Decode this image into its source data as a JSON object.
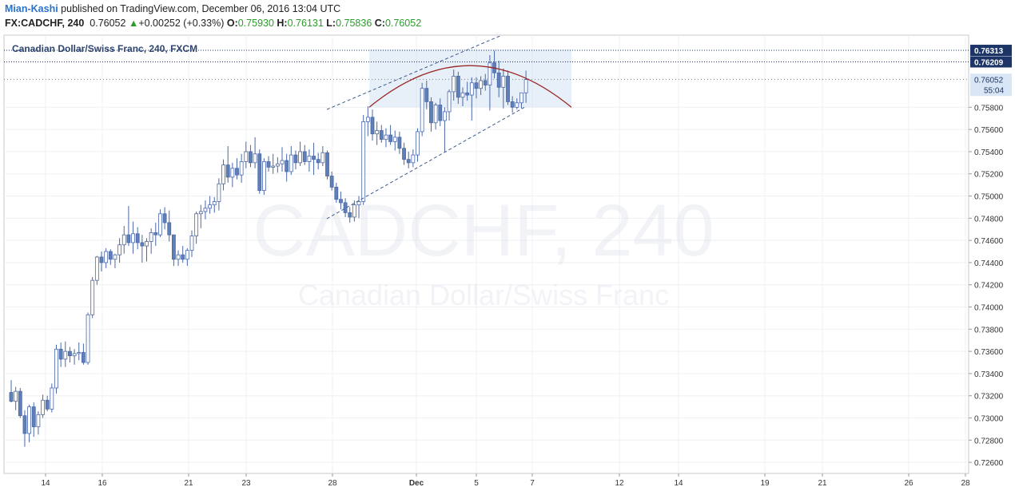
{
  "header": {
    "author": "Mian-Kashi",
    "published_text": "published on TradingView.com, December 06, 2016 13:04 UTC",
    "symbol": "FX:CADCHF, 240",
    "last": "0.76052",
    "change_arrow": "▲",
    "change": "+0.00252 (+0.33%)",
    "open_label": "O:",
    "open": "0.75930",
    "high_label": "H:",
    "high": "0.76131",
    "low_label": "L:",
    "low": "0.75836",
    "close_label": "C:",
    "close": "0.76052"
  },
  "chart_data": {
    "type": "candlestick",
    "title": "Canadian Dollar/Swiss Franc, 240, FXCM",
    "watermark_symbol": "CADCHF, 240",
    "watermark_name": "Canadian Dollar/Swiss Franc",
    "ylim": [
      0.725,
      0.7645
    ],
    "y_ticks": [
      "0.72600",
      "0.72800",
      "0.73000",
      "0.73200",
      "0.73400",
      "0.73600",
      "0.73800",
      "0.74000",
      "0.74200",
      "0.74400",
      "0.74600",
      "0.74800",
      "0.75000",
      "0.75200",
      "0.75400",
      "0.75600",
      "0.75800"
    ],
    "x_ticks": [
      "14",
      "16",
      "21",
      "23",
      "28",
      "Dec",
      "5",
      "7",
      "12",
      "14",
      "19",
      "21",
      "26",
      "28"
    ],
    "price_labels": {
      "upper_level": "0.76313",
      "lower_level": "0.76209",
      "last_price": "0.76052",
      "countdown": "55:04"
    },
    "grid": true,
    "colors": {
      "up_body": "#ffffff",
      "down_body": "#5f7fb8",
      "outline": "#4a68a8",
      "channel": "#3d5a8f",
      "arc": "#9b2a2a",
      "shade": "#d4e4f2",
      "last_price": "#5b86c2"
    },
    "candles": [
      {
        "o": 0.7323,
        "h": 0.7334,
        "l": 0.7314,
        "c": 0.7315
      },
      {
        "o": 0.7315,
        "h": 0.7328,
        "l": 0.7307,
        "c": 0.7324
      },
      {
        "o": 0.7324,
        "h": 0.7327,
        "l": 0.73,
        "c": 0.7302
      },
      {
        "o": 0.7302,
        "h": 0.7307,
        "l": 0.7274,
        "c": 0.7286
      },
      {
        "o": 0.7286,
        "h": 0.7312,
        "l": 0.7278,
        "c": 0.731
      },
      {
        "o": 0.731,
        "h": 0.7314,
        "l": 0.7283,
        "c": 0.7292
      },
      {
        "o": 0.7292,
        "h": 0.7306,
        "l": 0.7285,
        "c": 0.7303
      },
      {
        "o": 0.7303,
        "h": 0.7321,
        "l": 0.73,
        "c": 0.7316
      },
      {
        "o": 0.7316,
        "h": 0.732,
        "l": 0.7306,
        "c": 0.7308
      },
      {
        "o": 0.7308,
        "h": 0.7331,
        "l": 0.7305,
        "c": 0.7327
      },
      {
        "o": 0.7327,
        "h": 0.7366,
        "l": 0.7322,
        "c": 0.7362
      },
      {
        "o": 0.7362,
        "h": 0.7368,
        "l": 0.7346,
        "c": 0.7353
      },
      {
        "o": 0.7353,
        "h": 0.7369,
        "l": 0.7346,
        "c": 0.736
      },
      {
        "o": 0.736,
        "h": 0.7364,
        "l": 0.735,
        "c": 0.7356
      },
      {
        "o": 0.7356,
        "h": 0.7362,
        "l": 0.7348,
        "c": 0.7358
      },
      {
        "o": 0.7358,
        "h": 0.7368,
        "l": 0.7352,
        "c": 0.7359
      },
      {
        "o": 0.7359,
        "h": 0.7367,
        "l": 0.7348,
        "c": 0.735
      },
      {
        "o": 0.735,
        "h": 0.7395,
        "l": 0.7348,
        "c": 0.7393
      },
      {
        "o": 0.7393,
        "h": 0.7427,
        "l": 0.739,
        "c": 0.7424
      },
      {
        "o": 0.7424,
        "h": 0.7446,
        "l": 0.742,
        "c": 0.7445
      },
      {
        "o": 0.7445,
        "h": 0.745,
        "l": 0.7432,
        "c": 0.744
      },
      {
        "o": 0.744,
        "h": 0.7453,
        "l": 0.7435,
        "c": 0.745
      },
      {
        "o": 0.745,
        "h": 0.7452,
        "l": 0.7438,
        "c": 0.7443
      },
      {
        "o": 0.7443,
        "h": 0.7448,
        "l": 0.7435,
        "c": 0.7447
      },
      {
        "o": 0.7447,
        "h": 0.7462,
        "l": 0.744,
        "c": 0.7456
      },
      {
        "o": 0.7456,
        "h": 0.7473,
        "l": 0.7448,
        "c": 0.7465
      },
      {
        "o": 0.7465,
        "h": 0.7491,
        "l": 0.7455,
        "c": 0.7458
      },
      {
        "o": 0.7458,
        "h": 0.7477,
        "l": 0.7448,
        "c": 0.7466
      },
      {
        "o": 0.7466,
        "h": 0.7472,
        "l": 0.7452,
        "c": 0.7458
      },
      {
        "o": 0.7458,
        "h": 0.7465,
        "l": 0.744,
        "c": 0.7455
      },
      {
        "o": 0.7455,
        "h": 0.7462,
        "l": 0.7441,
        "c": 0.7459
      },
      {
        "o": 0.7459,
        "h": 0.7471,
        "l": 0.7448,
        "c": 0.7467
      },
      {
        "o": 0.7467,
        "h": 0.7476,
        "l": 0.7455,
        "c": 0.7465
      },
      {
        "o": 0.7465,
        "h": 0.7488,
        "l": 0.7463,
        "c": 0.7484
      },
      {
        "o": 0.7484,
        "h": 0.749,
        "l": 0.747,
        "c": 0.7476
      },
      {
        "o": 0.7476,
        "h": 0.7487,
        "l": 0.7459,
        "c": 0.7465
      },
      {
        "o": 0.7465,
        "h": 0.7462,
        "l": 0.7437,
        "c": 0.7443
      },
      {
        "o": 0.7443,
        "h": 0.7451,
        "l": 0.7437,
        "c": 0.7447
      },
      {
        "o": 0.7447,
        "h": 0.7455,
        "l": 0.744,
        "c": 0.7443
      },
      {
        "o": 0.7443,
        "h": 0.7453,
        "l": 0.7437,
        "c": 0.7451
      },
      {
        "o": 0.7451,
        "h": 0.7469,
        "l": 0.7445,
        "c": 0.7464
      },
      {
        "o": 0.7464,
        "h": 0.7486,
        "l": 0.7457,
        "c": 0.7484
      },
      {
        "o": 0.7484,
        "h": 0.7492,
        "l": 0.7471,
        "c": 0.7486
      },
      {
        "o": 0.7486,
        "h": 0.7496,
        "l": 0.7479,
        "c": 0.7489
      },
      {
        "o": 0.7489,
        "h": 0.75,
        "l": 0.7484,
        "c": 0.7492
      },
      {
        "o": 0.7492,
        "h": 0.7499,
        "l": 0.7485,
        "c": 0.7495
      },
      {
        "o": 0.7495,
        "h": 0.7516,
        "l": 0.7487,
        "c": 0.7511
      },
      {
        "o": 0.7511,
        "h": 0.7533,
        "l": 0.7505,
        "c": 0.7528
      },
      {
        "o": 0.7528,
        "h": 0.7545,
        "l": 0.7512,
        "c": 0.7517
      },
      {
        "o": 0.7517,
        "h": 0.753,
        "l": 0.7508,
        "c": 0.7525
      },
      {
        "o": 0.7525,
        "h": 0.7534,
        "l": 0.7515,
        "c": 0.7519
      },
      {
        "o": 0.7519,
        "h": 0.7538,
        "l": 0.7512,
        "c": 0.7531
      },
      {
        "o": 0.7531,
        "h": 0.7549,
        "l": 0.7525,
        "c": 0.754
      },
      {
        "o": 0.754,
        "h": 0.7546,
        "l": 0.7526,
        "c": 0.753
      },
      {
        "o": 0.753,
        "h": 0.7553,
        "l": 0.7525,
        "c": 0.7538
      },
      {
        "o": 0.7538,
        "h": 0.7542,
        "l": 0.7502,
        "c": 0.7505
      },
      {
        "o": 0.7505,
        "h": 0.7534,
        "l": 0.7501,
        "c": 0.7531
      },
      {
        "o": 0.7531,
        "h": 0.7536,
        "l": 0.7522,
        "c": 0.7526
      },
      {
        "o": 0.7526,
        "h": 0.7538,
        "l": 0.752,
        "c": 0.7527
      },
      {
        "o": 0.7527,
        "h": 0.7535,
        "l": 0.7521,
        "c": 0.7529
      },
      {
        "o": 0.7529,
        "h": 0.7544,
        "l": 0.7522,
        "c": 0.7532
      },
      {
        "o": 0.7532,
        "h": 0.7538,
        "l": 0.7513,
        "c": 0.7522
      },
      {
        "o": 0.7522,
        "h": 0.7545,
        "l": 0.7519,
        "c": 0.7537
      },
      {
        "o": 0.7537,
        "h": 0.7541,
        "l": 0.7524,
        "c": 0.753
      },
      {
        "o": 0.753,
        "h": 0.7549,
        "l": 0.7527,
        "c": 0.754
      },
      {
        "o": 0.754,
        "h": 0.7546,
        "l": 0.7528,
        "c": 0.7531
      },
      {
        "o": 0.7531,
        "h": 0.7542,
        "l": 0.7522,
        "c": 0.7536
      },
      {
        "o": 0.7536,
        "h": 0.7548,
        "l": 0.7519,
        "c": 0.7533
      },
      {
        "o": 0.7533,
        "h": 0.7539,
        "l": 0.7524,
        "c": 0.753
      },
      {
        "o": 0.753,
        "h": 0.7545,
        "l": 0.7527,
        "c": 0.7539
      },
      {
        "o": 0.7539,
        "h": 0.7541,
        "l": 0.7515,
        "c": 0.7518
      },
      {
        "o": 0.7518,
        "h": 0.7522,
        "l": 0.7505,
        "c": 0.7508
      },
      {
        "o": 0.7508,
        "h": 0.7512,
        "l": 0.7494,
        "c": 0.7497
      },
      {
        "o": 0.7497,
        "h": 0.7504,
        "l": 0.7488,
        "c": 0.7494
      },
      {
        "o": 0.7494,
        "h": 0.7498,
        "l": 0.7481,
        "c": 0.7485
      },
      {
        "o": 0.7485,
        "h": 0.749,
        "l": 0.7476,
        "c": 0.7481
      },
      {
        "o": 0.7481,
        "h": 0.7496,
        "l": 0.7477,
        "c": 0.7492
      },
      {
        "o": 0.7492,
        "h": 0.75,
        "l": 0.748,
        "c": 0.7495
      },
      {
        "o": 0.7495,
        "h": 0.7573,
        "l": 0.7492,
        "c": 0.7567
      },
      {
        "o": 0.7567,
        "h": 0.7581,
        "l": 0.7554,
        "c": 0.7571
      },
      {
        "o": 0.7571,
        "h": 0.7578,
        "l": 0.755,
        "c": 0.7556
      },
      {
        "o": 0.7556,
        "h": 0.7567,
        "l": 0.7546,
        "c": 0.7559
      },
      {
        "o": 0.7559,
        "h": 0.7564,
        "l": 0.7548,
        "c": 0.7551
      },
      {
        "o": 0.7551,
        "h": 0.7561,
        "l": 0.7544,
        "c": 0.7555
      },
      {
        "o": 0.7555,
        "h": 0.7564,
        "l": 0.7546,
        "c": 0.7549
      },
      {
        "o": 0.7549,
        "h": 0.7559,
        "l": 0.7541,
        "c": 0.7553
      },
      {
        "o": 0.7553,
        "h": 0.7558,
        "l": 0.7538,
        "c": 0.7543
      },
      {
        "o": 0.7543,
        "h": 0.7548,
        "l": 0.7528,
        "c": 0.7533
      },
      {
        "o": 0.7533,
        "h": 0.754,
        "l": 0.7525,
        "c": 0.753
      },
      {
        "o": 0.753,
        "h": 0.7542,
        "l": 0.7526,
        "c": 0.7537
      },
      {
        "o": 0.7537,
        "h": 0.7561,
        "l": 0.7531,
        "c": 0.7558
      },
      {
        "o": 0.7558,
        "h": 0.7602,
        "l": 0.7554,
        "c": 0.7597
      },
      {
        "o": 0.7597,
        "h": 0.7604,
        "l": 0.7578,
        "c": 0.7585
      },
      {
        "o": 0.7585,
        "h": 0.7589,
        "l": 0.7558,
        "c": 0.7566
      },
      {
        "o": 0.7566,
        "h": 0.7584,
        "l": 0.756,
        "c": 0.7582
      },
      {
        "o": 0.7582,
        "h": 0.7588,
        "l": 0.7563,
        "c": 0.7568
      },
      {
        "o": 0.7568,
        "h": 0.758,
        "l": 0.754,
        "c": 0.7576
      },
      {
        "o": 0.7576,
        "h": 0.7596,
        "l": 0.7568,
        "c": 0.7594
      },
      {
        "o": 0.7594,
        "h": 0.7614,
        "l": 0.7586,
        "c": 0.7608
      },
      {
        "o": 0.7608,
        "h": 0.7612,
        "l": 0.7583,
        "c": 0.7589
      },
      {
        "o": 0.7589,
        "h": 0.7598,
        "l": 0.7581,
        "c": 0.7593
      },
      {
        "o": 0.7593,
        "h": 0.7603,
        "l": 0.7586,
        "c": 0.7591
      },
      {
        "o": 0.7591,
        "h": 0.7607,
        "l": 0.7568,
        "c": 0.7602
      },
      {
        "o": 0.7602,
        "h": 0.7607,
        "l": 0.7588,
        "c": 0.7597
      },
      {
        "o": 0.7597,
        "h": 0.7608,
        "l": 0.7591,
        "c": 0.7604
      },
      {
        "o": 0.7604,
        "h": 0.761,
        "l": 0.7595,
        "c": 0.76
      },
      {
        "o": 0.76,
        "h": 0.7627,
        "l": 0.7577,
        "c": 0.762
      },
      {
        "o": 0.762,
        "h": 0.7631,
        "l": 0.7606,
        "c": 0.7611
      },
      {
        "o": 0.7611,
        "h": 0.7622,
        "l": 0.7589,
        "c": 0.7598
      },
      {
        "o": 0.7598,
        "h": 0.7615,
        "l": 0.7579,
        "c": 0.7608
      },
      {
        "o": 0.7608,
        "h": 0.7613,
        "l": 0.7582,
        "c": 0.7585
      },
      {
        "o": 0.7585,
        "h": 0.759,
        "l": 0.7575,
        "c": 0.758
      },
      {
        "o": 0.758,
        "h": 0.7588,
        "l": 0.7578,
        "c": 0.7584
      },
      {
        "o": 0.7584,
        "h": 0.7593,
        "l": 0.7579,
        "c": 0.7593
      },
      {
        "o": 0.7593,
        "h": 0.7613,
        "l": 0.7584,
        "c": 0.7605
      }
    ]
  }
}
